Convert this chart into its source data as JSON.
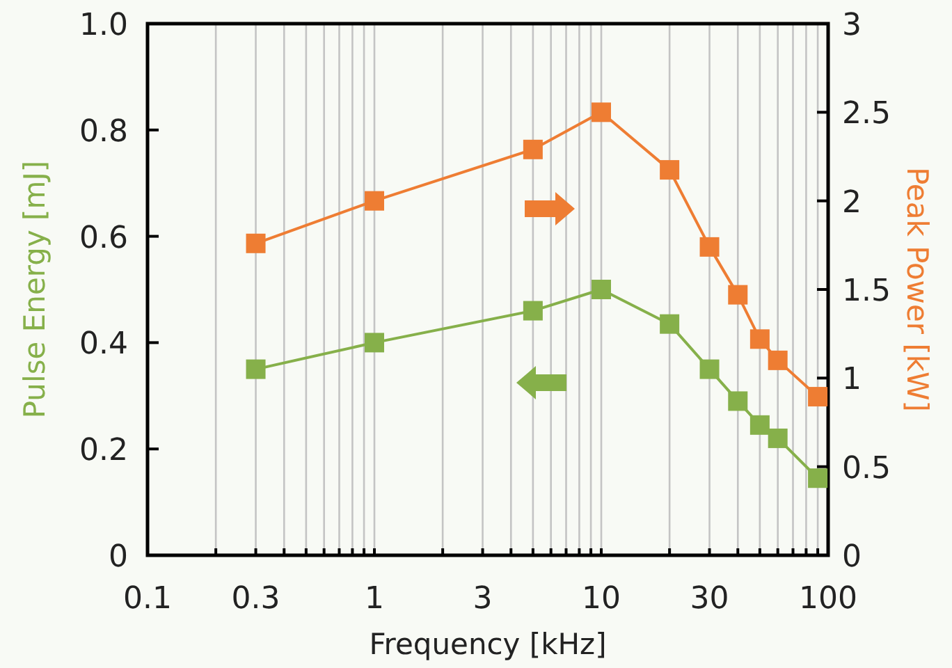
{
  "chart_data": {
    "type": "line",
    "xlabel": "Frequency [kHz]",
    "ylabel": "Pulse Energy [mJ]",
    "y2label": "Peak Power [kW]",
    "x": [
      0.3,
      1,
      5,
      10,
      20,
      30,
      40,
      50,
      60,
      90
    ],
    "series": [
      {
        "color": "#86b04a",
        "values": [
          0.35,
          0.4,
          0.46,
          0.5,
          0.435,
          0.35,
          0.29,
          0.245,
          0.22,
          0.145
        ]
      },
      {
        "color": "#ee7d33",
        "axis": "y2",
        "values": [
          1.76,
          2.0,
          2.29,
          2.5,
          2.175,
          1.74,
          1.47,
          1.22,
          1.1,
          0.895
        ]
      }
    ],
    "log": "x",
    "xlim": [
      0.1,
      100
    ],
    "xticks": [
      0.1,
      0.3,
      1,
      3,
      10,
      30,
      100
    ],
    "ylim": [
      0,
      1
    ],
    "yticks": [
      0,
      0.2,
      0.4,
      0.6,
      0.8,
      {
        "value": 1,
        "label": "1.0"
      }
    ],
    "y2lim": [
      0,
      3
    ],
    "y2ticks": [
      0,
      0.5,
      1,
      1.5,
      2,
      2.5,
      3
    ],
    "grid": "x",
    "marker": "square",
    "line_style": "solid"
  }
}
